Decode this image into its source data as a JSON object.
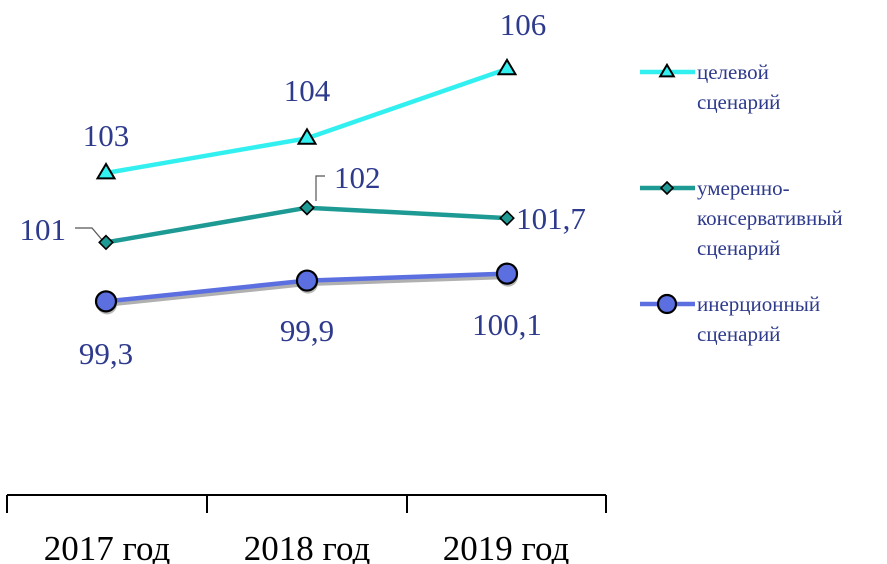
{
  "chart_data": {
    "type": "line",
    "categories": [
      "2017 год",
      "2018 год",
      "2019 год"
    ],
    "series": [
      {
        "name": "целевой сценарий",
        "legend_lines": [
          "целевой",
          "сценарий"
        ],
        "values": [
          103,
          104,
          106
        ],
        "labels": [
          "103",
          "104",
          "106"
        ],
        "color": "#33F0F0",
        "marker": "triangle"
      },
      {
        "name": "умеренно-консервативный сценарий",
        "legend_lines": [
          "умеренно-",
          "консервативный",
          "сценарий"
        ],
        "values": [
          101,
          102,
          101.7
        ],
        "labels": [
          "101",
          "102",
          "101,7"
        ],
        "color": "#1E9A94",
        "marker": "diamond"
      },
      {
        "name": "инерционный сценарий",
        "legend_lines": [
          "инерционный",
          "сценарий"
        ],
        "values": [
          99.3,
          99.9,
          100.1
        ],
        "labels": [
          "99,3",
          "99,9",
          "100,1"
        ],
        "color": "#5B6FE0",
        "marker": "circle"
      }
    ],
    "legend_position": "right",
    "grid": false,
    "xlabel": "",
    "ylabel": "",
    "colors": {
      "label_text": "#2E3A8C",
      "axis": "#000000"
    }
  }
}
